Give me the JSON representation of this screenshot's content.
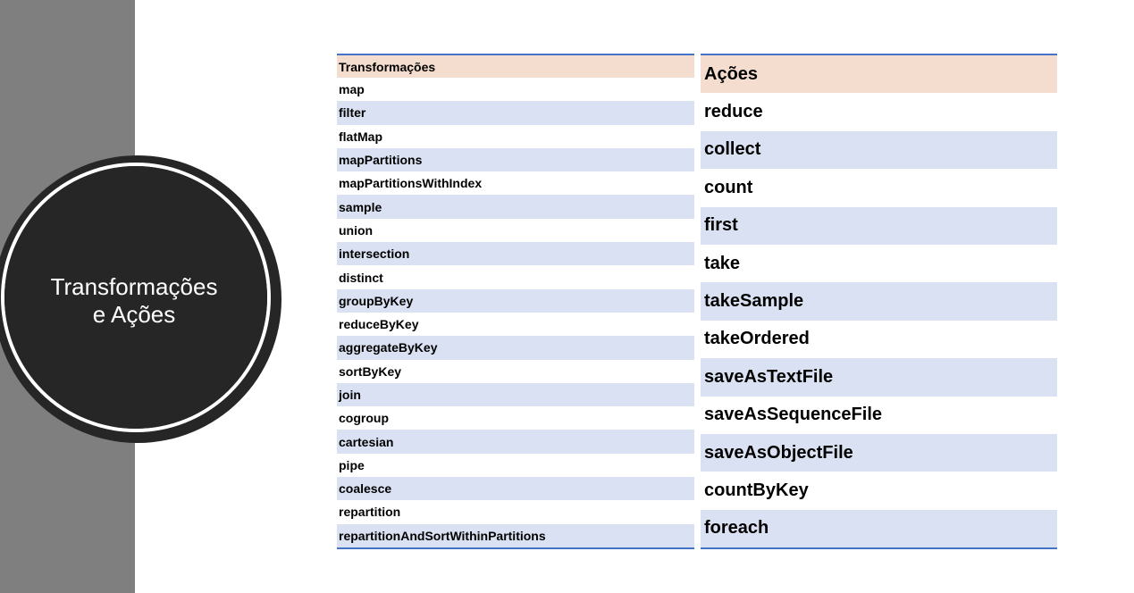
{
  "slide": {
    "title_line1": "Transformações",
    "title_line2": "e Ações"
  },
  "transformations": {
    "header": "Transformações",
    "items": [
      "map",
      "filter",
      "flatMap",
      "mapPartitions",
      "mapPartitionsWithIndex",
      "sample",
      "union",
      "intersection",
      "distinct",
      "groupByKey",
      "reduceByKey",
      "aggregateByKey",
      "sortByKey",
      "join",
      "cogroup",
      "cartesian",
      "pipe",
      "coalesce",
      "repartition",
      "repartitionAndSortWithinPartitions"
    ]
  },
  "actions": {
    "header": "Ações",
    "items": [
      "reduce",
      "collect",
      "count",
      "first",
      "take",
      "takeSample",
      "takeOrdered",
      "saveAsTextFile",
      "saveAsSequenceFile",
      "saveAsObjectFile",
      "countByKey",
      "foreach"
    ]
  },
  "colors": {
    "side_band": "#7f7f7f",
    "circle": "#262626",
    "header_fill": "#f4ddcf",
    "band_fill": "#d9e1f2",
    "rule": "#4472c4"
  }
}
